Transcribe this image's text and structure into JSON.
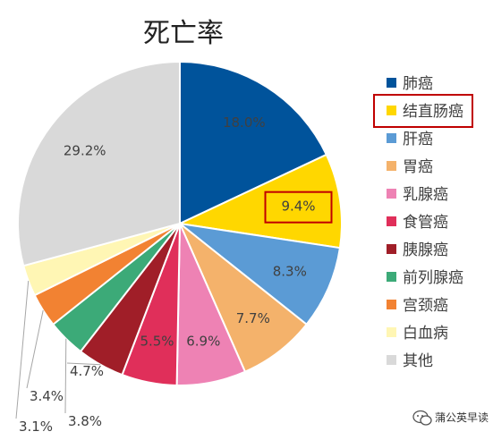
{
  "chart_data": {
    "type": "pie",
    "title": "死亡率",
    "slices": [
      {
        "label": "肺癌",
        "value": 18.0,
        "display": "18.0%",
        "color": "#00539B"
      },
      {
        "label": "结直肠癌",
        "value": 9.4,
        "display": "9.4%",
        "color": "#FFD700",
        "highlighted": true
      },
      {
        "label": "肝癌",
        "value": 8.3,
        "display": "8.3%",
        "color": "#5B9BD5"
      },
      {
        "label": "胃癌",
        "value": 7.7,
        "display": "7.7%",
        "color": "#F4B26B"
      },
      {
        "label": "乳腺癌",
        "value": 6.9,
        "display": "6.9%",
        "color": "#EE82B4"
      },
      {
        "label": "食管癌",
        "value": 5.5,
        "display": "5.5%",
        "color": "#E02F5A"
      },
      {
        "label": "胰腺癌",
        "value": 4.7,
        "display": "4.7%",
        "color": "#A01E28"
      },
      {
        "label": "前列腺癌",
        "value": 3.8,
        "display": "3.8%",
        "color": "#3CAA78"
      },
      {
        "label": "宫颈癌",
        "value": 3.4,
        "display": "3.4%",
        "color": "#F28232"
      },
      {
        "label": "白血病",
        "value": 3.1,
        "display": "3.1%",
        "color": "#FFF6B4"
      },
      {
        "label": "其他",
        "value": 29.2,
        "display": "29.2%",
        "color": "#D9D9D9"
      }
    ],
    "legend_position": "right"
  },
  "watermark": "蒲公英早读",
  "accent_colors": {
    "highlight_box": "#C00000"
  }
}
